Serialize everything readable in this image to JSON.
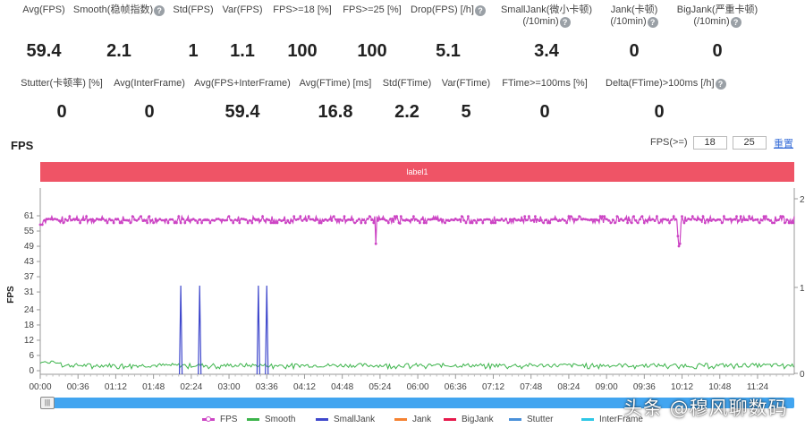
{
  "stats_row1": [
    {
      "label": "Avg(FPS)",
      "value": "59.4",
      "help": false
    },
    {
      "label": "Smooth(稳帧指数)",
      "value": "2.1",
      "help": true
    },
    {
      "label": "Std(FPS)",
      "value": "1",
      "help": false
    },
    {
      "label": "Var(FPS)",
      "value": "1.1",
      "help": false
    },
    {
      "label": "FPS>=18 [%]",
      "value": "100",
      "help": false
    },
    {
      "label": "FPS>=25 [%]",
      "value": "100",
      "help": false
    },
    {
      "label": "Drop(FPS) [/h]",
      "value": "5.1",
      "help": true
    },
    {
      "label": "SmallJank(微小卡顿)",
      "label2": "(/10min)",
      "value": "3.4",
      "help": true
    },
    {
      "label": "Jank(卡顿)",
      "label2": "(/10min)",
      "value": "0",
      "help": true
    },
    {
      "label": "BigJank(严重卡顿)",
      "label2": "(/10min)",
      "value": "0",
      "help": true
    }
  ],
  "stats_row2": [
    {
      "label": "Stutter(卡顿率) [%]",
      "value": "0",
      "help": false
    },
    {
      "label": "Avg(InterFrame)",
      "value": "0",
      "help": false
    },
    {
      "label": "Avg(FPS+InterFrame)",
      "value": "59.4",
      "help": false
    },
    {
      "label": "Avg(FTime) [ms]",
      "value": "16.8",
      "help": false
    },
    {
      "label": "Std(FTime)",
      "value": "2.2",
      "help": false
    },
    {
      "label": "Var(FTime)",
      "value": "5",
      "help": false
    },
    {
      "label": "FTime>=100ms [%]",
      "value": "0",
      "help": false
    },
    {
      "label": "Delta(FTime)>100ms [/h]",
      "value": "0",
      "help": true
    }
  ],
  "chart_header": {
    "title": "FPS",
    "threshold_label": "FPS(>=)",
    "threshold_low": "18",
    "threshold_high": "25",
    "reset_label": "重置"
  },
  "label_band": "label1",
  "watermark": "头条 @穆风聊数码",
  "chart_data": {
    "type": "line",
    "title": "FPS",
    "xlabel": "",
    "ylabel": "FPS",
    "ylim": [
      0,
      61
    ],
    "y_ticks": [
      0,
      6,
      12,
      18,
      24,
      31,
      37,
      43,
      49,
      55,
      61
    ],
    "y2_ticks": [
      0,
      1,
      2
    ],
    "x_ticks": [
      "00:00",
      "00:36",
      "01:12",
      "01:48",
      "02:24",
      "03:00",
      "03:36",
      "04:12",
      "04:48",
      "05:24",
      "06:00",
      "06:36",
      "07:12",
      "07:48",
      "08:24",
      "09:00",
      "09:36",
      "10:12",
      "10:48",
      "11:24"
    ],
    "x_range_seconds": [
      0,
      719
    ],
    "grid": true,
    "legend_position": "bottom",
    "series": [
      {
        "name": "FPS",
        "color": "#cc44c4",
        "marker": "circle",
        "baseline": 59.4,
        "variation": [
          58,
          61
        ],
        "dips": [
          {
            "t": 320,
            "value": 50
          },
          {
            "t": 343,
            "value": 58
          },
          {
            "t": 608,
            "value": 53
          },
          {
            "t": 609,
            "value": 49
          },
          {
            "t": 610,
            "value": 50
          }
        ]
      },
      {
        "name": "Smooth",
        "color": "#3cb44b",
        "baseline": 2.1,
        "variation": [
          1,
          4
        ]
      },
      {
        "name": "SmallJank",
        "color": "#3f48cc",
        "axis": "right",
        "spikes_seconds": [
          134,
          152,
          208,
          216
        ],
        "spike_value": 1
      },
      {
        "name": "Jank",
        "color": "#f58231",
        "values": []
      },
      {
        "name": "BigJank",
        "color": "#e6194b",
        "values": []
      },
      {
        "name": "Stutter",
        "color": "#4a90d9",
        "values": []
      },
      {
        "name": "InterFrame",
        "color": "#2ec7e6",
        "values": []
      }
    ]
  }
}
